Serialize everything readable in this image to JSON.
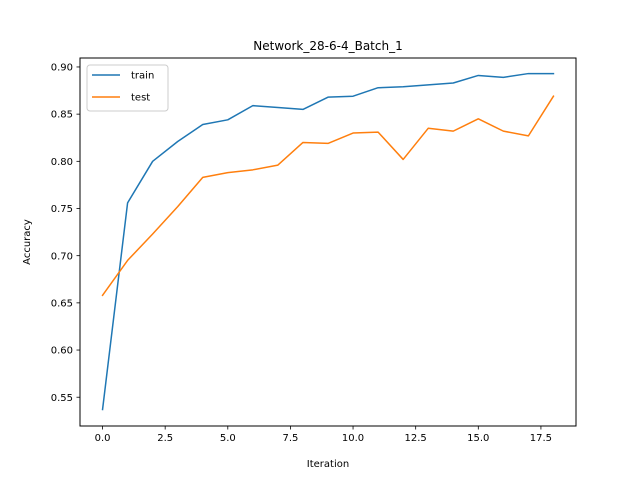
{
  "chart_data": {
    "type": "line",
    "title": "Network_28-6-4_Batch_1",
    "xlabel": "Iteration",
    "ylabel": "Accuracy",
    "xlim": [
      -0.9,
      18.9
    ],
    "ylim": [
      0.5195,
      0.9095
    ],
    "xticks": [
      0.0,
      2.5,
      5.0,
      7.5,
      10.0,
      12.5,
      15.0,
      17.5
    ],
    "xtick_labels": [
      "0.0",
      "2.5",
      "5.0",
      "7.5",
      "10.0",
      "12.5",
      "15.0",
      "17.5"
    ],
    "yticks": [
      0.55,
      0.6,
      0.65,
      0.7,
      0.75,
      0.8,
      0.85,
      0.9
    ],
    "ytick_labels": [
      "0.55",
      "0.60",
      "0.65",
      "0.70",
      "0.75",
      "0.80",
      "0.85",
      "0.90"
    ],
    "grid": false,
    "legend_position": "top-left",
    "x": [
      0,
      1,
      2,
      3,
      4,
      5,
      6,
      7,
      8,
      9,
      10,
      11,
      12,
      13,
      14,
      15,
      16,
      17,
      18
    ],
    "series": [
      {
        "name": "train",
        "color": "#1f77b4",
        "values": [
          0.537,
          0.756,
          0.8,
          0.821,
          0.839,
          0.844,
          0.859,
          0.857,
          0.855,
          0.868,
          0.869,
          0.878,
          0.879,
          0.881,
          0.883,
          0.891,
          0.889,
          0.893,
          0.893
        ]
      },
      {
        "name": "test",
        "color": "#ff7f0e",
        "values": [
          0.658,
          0.695,
          0.723,
          0.752,
          0.783,
          0.788,
          0.791,
          0.796,
          0.82,
          0.819,
          0.83,
          0.831,
          0.802,
          0.835,
          0.832,
          0.845,
          0.832,
          0.827,
          0.869
        ]
      }
    ]
  }
}
